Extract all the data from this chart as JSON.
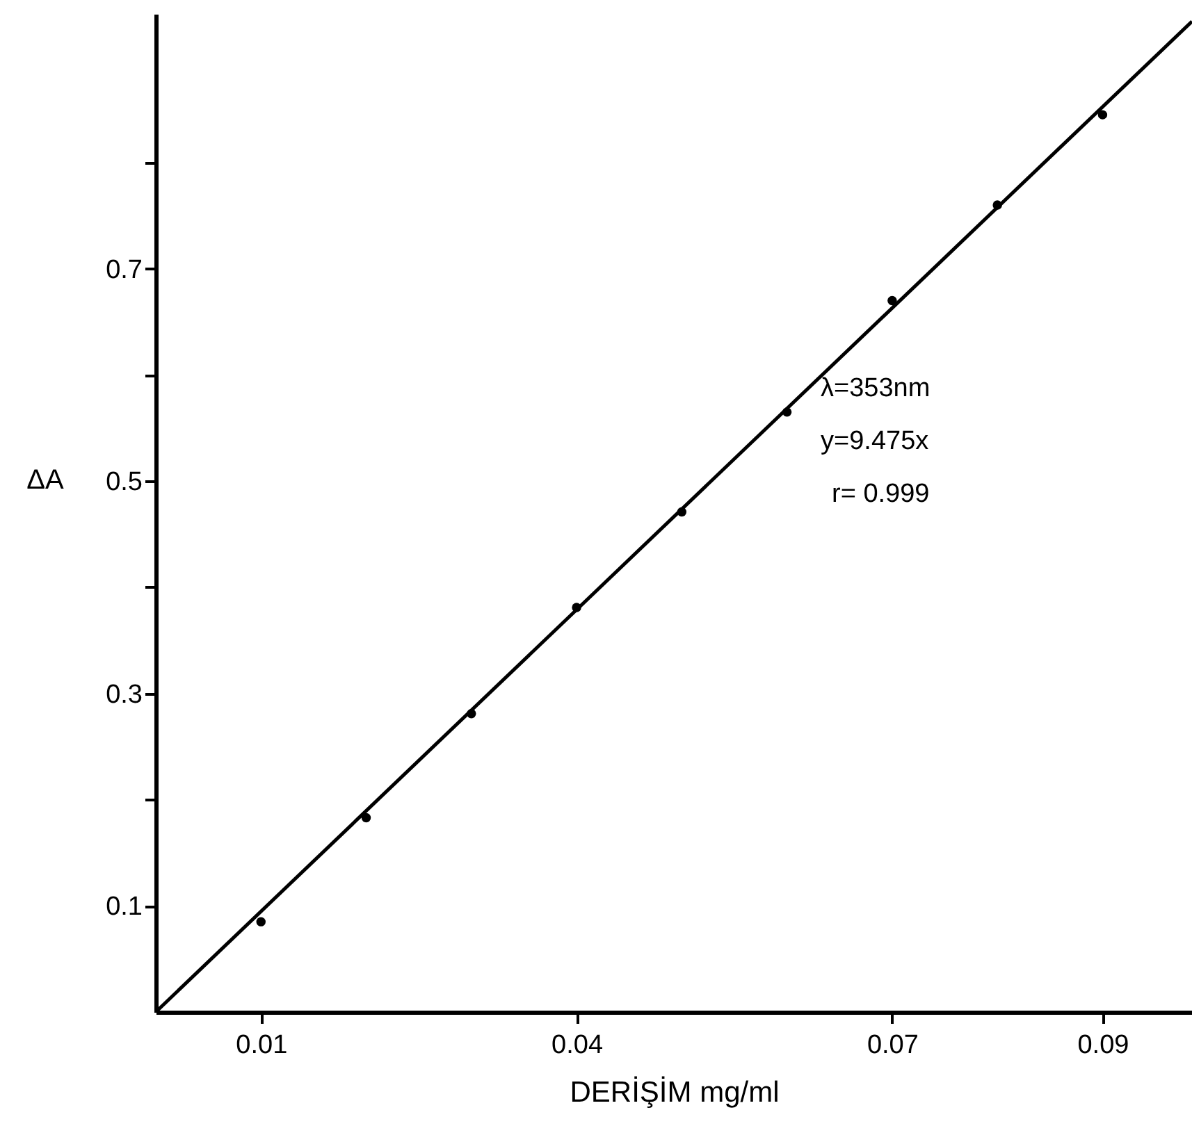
{
  "chart_data": {
    "type": "scatter",
    "xlabel": "DERİŞİM mg/ml",
    "ylabel": "ΔA",
    "annotations": [
      "λ=353nm",
      "y=9.475x",
      "r= 0.999"
    ],
    "x": [
      0.01,
      0.02,
      0.03,
      0.04,
      0.05,
      0.06,
      0.07,
      0.08,
      0.09
    ],
    "series": [
      {
        "color": "#000000",
        "values": [
          0.085,
          0.183,
          0.281,
          0.381,
          0.471,
          0.565,
          0.67,
          0.76,
          0.845
        ]
      },
      {
        "type": "line",
        "marker": "none",
        "color": "#000000",
        "x": [
          0,
          0.0985
        ],
        "values": [
          0,
          0.933
        ]
      }
    ],
    "marker": "circle",
    "xlim": [
      0,
      0.0985
    ],
    "ylim": [
      0,
      0.94
    ],
    "xticks": [
      0.01,
      0.04,
      0.07,
      0.09
    ],
    "yticks": [
      0.1,
      {
        "value": 0.2,
        "label": null
      },
      0.3,
      {
        "value": 0.4,
        "label": null
      },
      0.5,
      {
        "value": 0.6,
        "label": null
      },
      0.7,
      {
        "value": 0.8,
        "label": null
      }
    ]
  }
}
